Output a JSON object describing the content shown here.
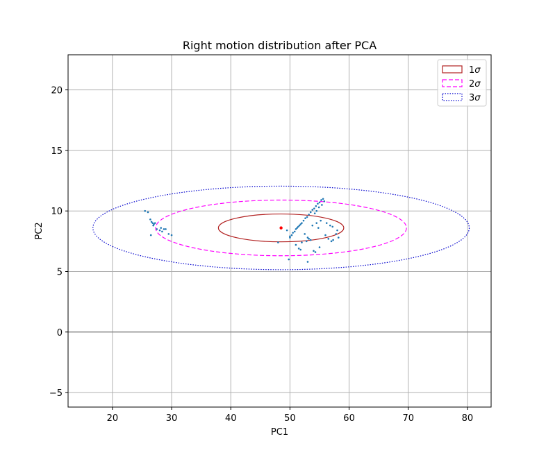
{
  "chart_data": {
    "type": "scatter",
    "title": "Right motion distribution after PCA",
    "xlabel": "PC1",
    "ylabel": "PC2",
    "xlim": [
      12.5,
      84
    ],
    "ylim": [
      -6.2,
      22.9
    ],
    "xticks": [
      20,
      30,
      40,
      50,
      60,
      70,
      80
    ],
    "yticks": [
      -5,
      0,
      5,
      10,
      15,
      20
    ],
    "grid": true,
    "legend_position": "top-right",
    "zero_line": {
      "y": 0,
      "color": "#808080"
    },
    "mean_point": {
      "x": 48.5,
      "y": 8.6,
      "color": "#ff0000"
    },
    "ellipses": [
      {
        "name": "1σ",
        "label_prefix": "1",
        "cx": 48.5,
        "cy": 8.6,
        "rx": 10.6,
        "ry": 1.15,
        "color": "#b22222",
        "style": "solid"
      },
      {
        "name": "2σ",
        "label_prefix": "2",
        "cx": 48.5,
        "cy": 8.6,
        "rx": 21.2,
        "ry": 2.3,
        "color": "#ff00ff",
        "style": "dashed"
      },
      {
        "name": "3σ",
        "label_prefix": "3",
        "cx": 48.5,
        "cy": 8.6,
        "rx": 31.8,
        "ry": 3.45,
        "color": "#0000cd",
        "style": "dotted"
      }
    ],
    "series": [
      {
        "color": "#1f77b4",
        "points": [
          [
            25.5,
            10.0
          ],
          [
            26.0,
            9.9
          ],
          [
            26.4,
            9.3
          ],
          [
            26.6,
            9.1
          ],
          [
            26.8,
            9.0
          ],
          [
            27.0,
            8.9
          ],
          [
            27.2,
            9.0
          ],
          [
            26.9,
            8.8
          ],
          [
            27.5,
            8.5
          ],
          [
            28.0,
            8.4
          ],
          [
            28.4,
            8.3
          ],
          [
            28.7,
            8.5
          ],
          [
            29.0,
            8.5
          ],
          [
            29.5,
            8.1
          ],
          [
            30.0,
            8.0
          ],
          [
            26.5,
            8.0
          ],
          [
            28.2,
            8.6
          ],
          [
            48.0,
            7.4
          ],
          [
            49.8,
            6.0
          ],
          [
            50.0,
            7.8
          ],
          [
            50.3,
            8.0
          ],
          [
            50.5,
            8.2
          ],
          [
            50.8,
            8.3
          ],
          [
            51.0,
            8.5
          ],
          [
            51.2,
            8.6
          ],
          [
            51.4,
            8.7
          ],
          [
            51.6,
            8.8
          ],
          [
            51.8,
            8.9
          ],
          [
            52.0,
            9.0
          ],
          [
            52.3,
            9.2
          ],
          [
            52.6,
            9.4
          ],
          [
            52.9,
            9.5
          ],
          [
            53.2,
            9.7
          ],
          [
            53.5,
            9.9
          ],
          [
            53.8,
            10.1
          ],
          [
            54.1,
            10.2
          ],
          [
            54.4,
            10.4
          ],
          [
            54.7,
            10.6
          ],
          [
            55.0,
            10.7
          ],
          [
            55.3,
            10.9
          ],
          [
            55.6,
            11.0
          ],
          [
            55.8,
            10.8
          ],
          [
            55.4,
            10.5
          ],
          [
            54.9,
            10.3
          ],
          [
            54.5,
            10.0
          ],
          [
            54.2,
            9.8
          ],
          [
            53.0,
            7.8
          ],
          [
            53.2,
            7.7
          ],
          [
            53.5,
            7.6
          ],
          [
            52.8,
            7.5
          ],
          [
            52.0,
            7.4
          ],
          [
            51.5,
            6.9
          ],
          [
            51.8,
            6.8
          ],
          [
            53.0,
            5.8
          ],
          [
            54.0,
            6.7
          ],
          [
            54.3,
            6.6
          ],
          [
            55.0,
            7.0
          ],
          [
            54.8,
            8.6
          ],
          [
            55.2,
            9.2
          ],
          [
            54.5,
            9.0
          ],
          [
            53.8,
            8.8
          ],
          [
            56.0,
            8.0
          ],
          [
            56.5,
            7.7
          ],
          [
            57.0,
            7.5
          ],
          [
            57.3,
            7.6
          ],
          [
            57.8,
            8.1
          ],
          [
            58.0,
            8.4
          ],
          [
            58.2,
            7.8
          ],
          [
            57.2,
            8.7
          ],
          [
            56.8,
            8.8
          ],
          [
            56.2,
            9.0
          ],
          [
            52.5,
            8.1
          ],
          [
            51.0,
            7.2
          ],
          [
            50.0,
            7.9
          ],
          [
            49.5,
            8.4
          ]
        ]
      }
    ]
  }
}
